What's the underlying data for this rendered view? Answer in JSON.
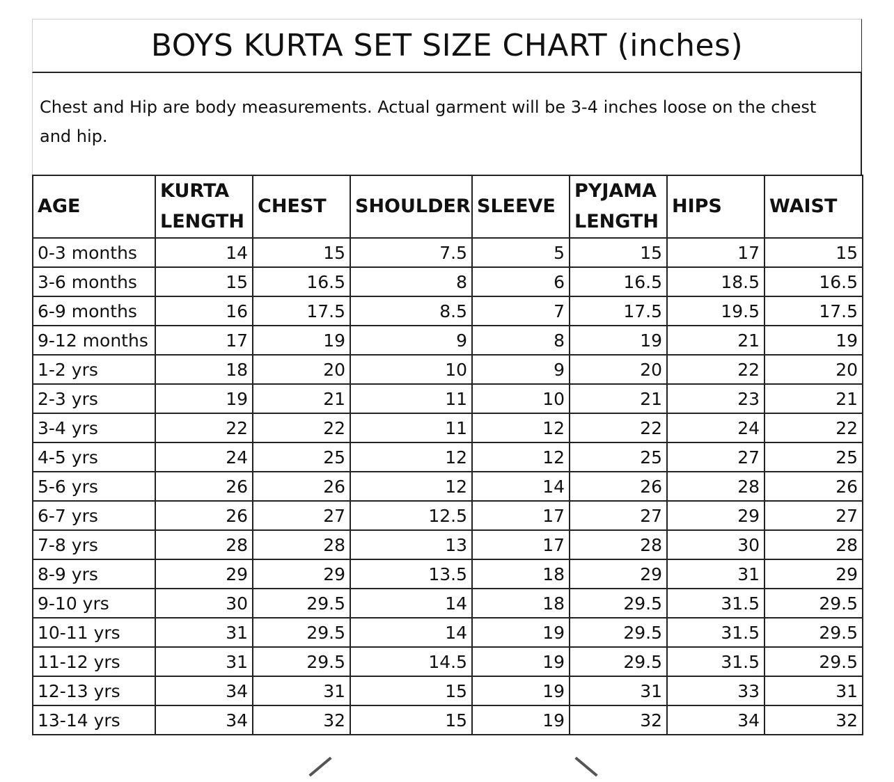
{
  "title": "BOYS KURTA SET SIZE CHART (inches)",
  "note_line1": "Chest and Hip are body measurements. Actual garment will be 3-4 inches loose on the chest",
  "note_line2": "and hip.",
  "headers": [
    [
      "AGE"
    ],
    [
      "KURTA",
      "LENGTH"
    ],
    [
      "CHEST"
    ],
    [
      "SHOULDER"
    ],
    [
      "SLEEVE"
    ],
    [
      "PYJAMA",
      "LENGTH"
    ],
    [
      "HIPS"
    ],
    [
      "WAIST"
    ]
  ],
  "rows": [
    [
      "0-3 months",
      "14",
      "15",
      "7.5",
      "5",
      "15",
      "17",
      "15"
    ],
    [
      "3-6 months",
      "15",
      "16.5",
      "8",
      "6",
      "16.5",
      "18.5",
      "16.5"
    ],
    [
      "6-9 months",
      "16",
      "17.5",
      "8.5",
      "7",
      "17.5",
      "19.5",
      "17.5"
    ],
    [
      "9-12 months",
      "17",
      "19",
      "9",
      "8",
      "19",
      "21",
      "19"
    ],
    [
      "1-2 yrs",
      "18",
      "20",
      "10",
      "9",
      "20",
      "22",
      "20"
    ],
    [
      "2-3 yrs",
      "19",
      "21",
      "11",
      "10",
      "21",
      "23",
      "21"
    ],
    [
      "3-4 yrs",
      "22",
      "22",
      "11",
      "12",
      "22",
      "24",
      "22"
    ],
    [
      "4-5 yrs",
      "24",
      "25",
      "12",
      "12",
      "25",
      "27",
      "25"
    ],
    [
      "5-6 yrs",
      "26",
      "26",
      "12",
      "14",
      "26",
      "28",
      "26"
    ],
    [
      "6-7 yrs",
      "26",
      "27",
      "12.5",
      "17",
      "27",
      "29",
      "27"
    ],
    [
      "7-8 yrs",
      "28",
      "28",
      "13",
      "17",
      "28",
      "30",
      "28"
    ],
    [
      "8-9 yrs",
      "29",
      "29",
      "13.5",
      "18",
      "29",
      "31",
      "29"
    ],
    [
      "9-10 yrs",
      "30",
      "29.5",
      "14",
      "18",
      "29.5",
      "31.5",
      "29.5"
    ],
    [
      "10-11 yrs",
      "31",
      "29.5",
      "14",
      "19",
      "29.5",
      "31.5",
      "29.5"
    ],
    [
      "11-12 yrs",
      "31",
      "29.5",
      "14.5",
      "19",
      "29.5",
      "31.5",
      "29.5"
    ],
    [
      "12-13 yrs",
      "34",
      "31",
      "15",
      "19",
      "31",
      "33",
      "31"
    ],
    [
      "13-14 yrs",
      "34",
      "32",
      "15",
      "19",
      "32",
      "34",
      "32"
    ]
  ]
}
